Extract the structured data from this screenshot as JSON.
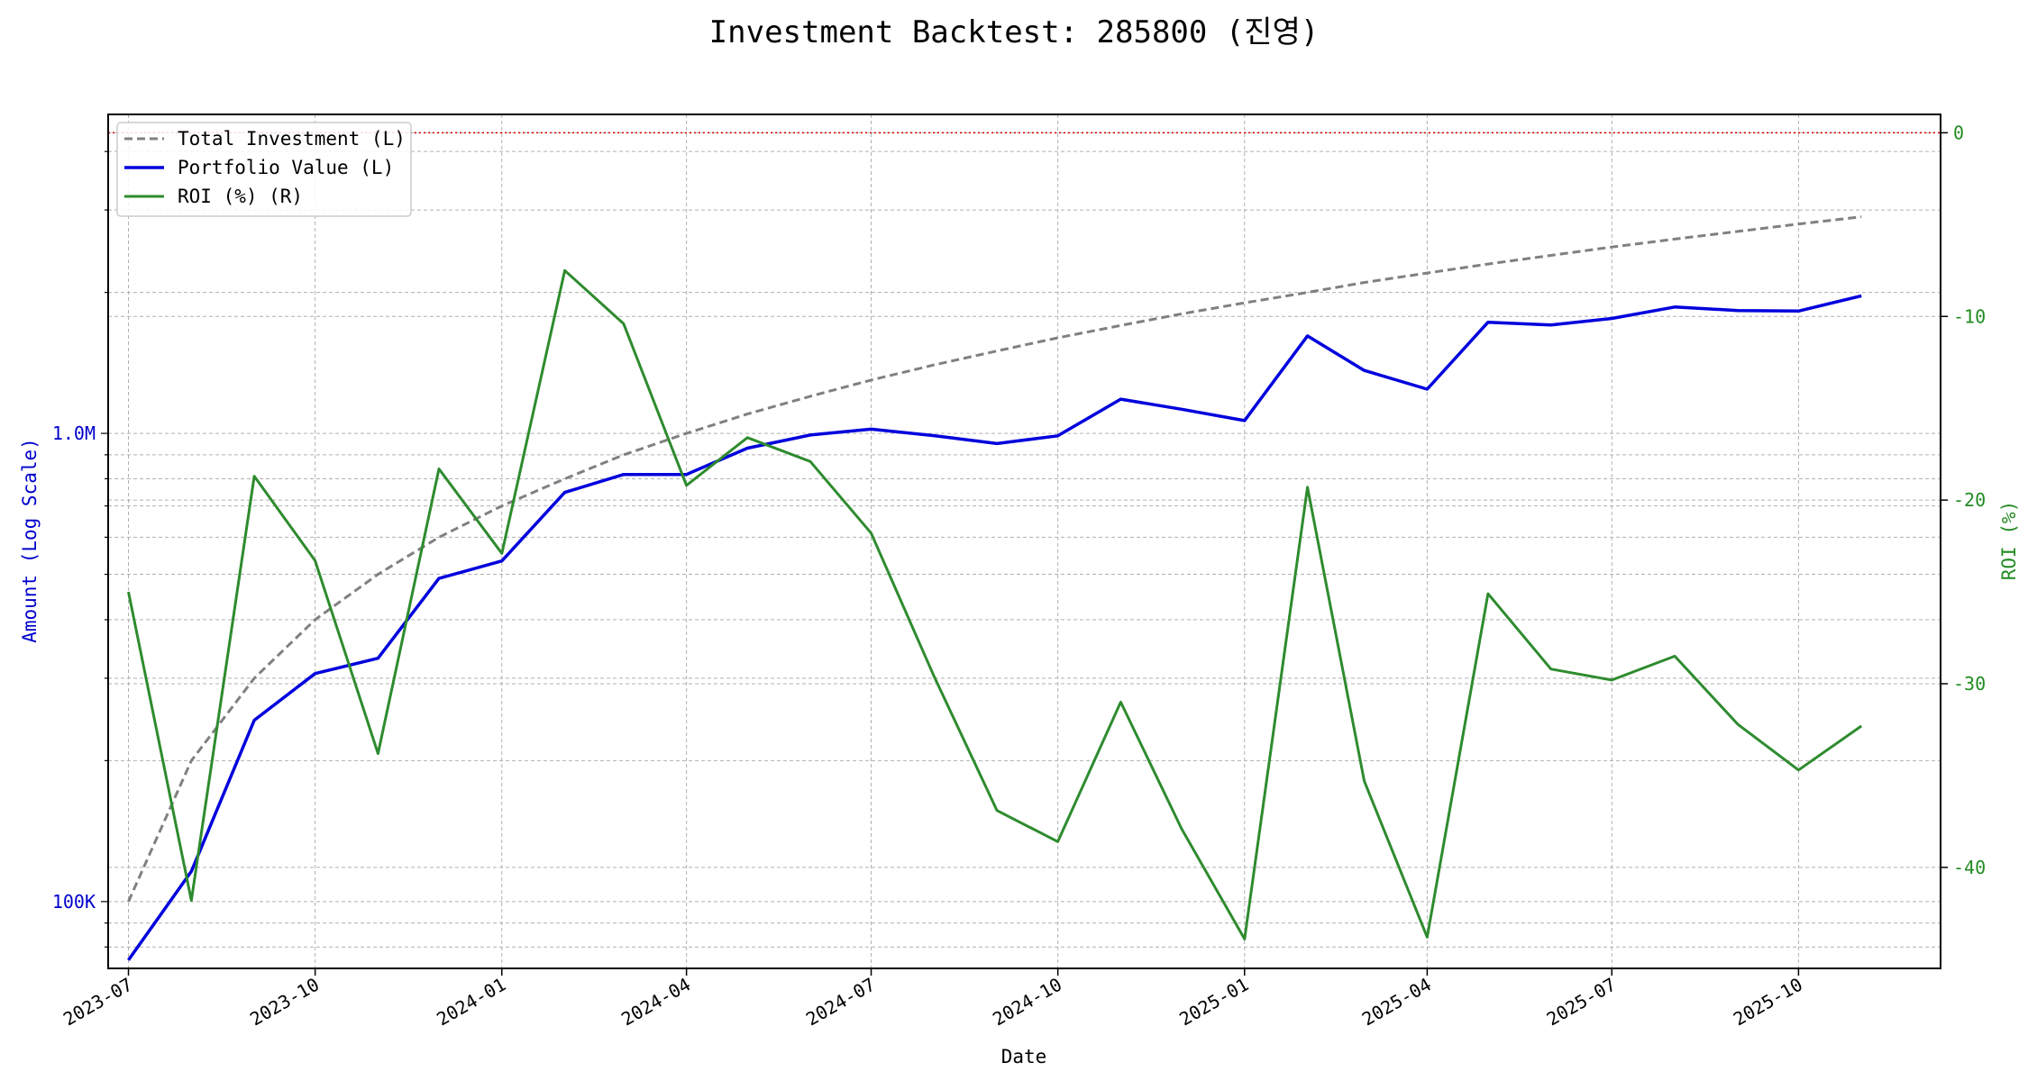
{
  "chart_data": {
    "type": "line",
    "title": "Investment Backtest: 285800 (진영)",
    "xlabel": "Date",
    "ylabel_left": "Amount (Log Scale)",
    "ylabel_right": "ROI (%)",
    "left_scale": "log",
    "left_ylim": [
      72000,
      4800000
    ],
    "right_ylim": [
      -45.5,
      1.0
    ],
    "grid": true,
    "legend_position": "upper-left",
    "x_tick_labels": [
      "2023-07",
      "2023-10",
      "2024-01",
      "2024-04",
      "2024-07",
      "2024-10",
      "2025-01",
      "2025-04",
      "2025-07",
      "2025-10"
    ],
    "left_tick_labels": [
      "100K",
      "1.0M"
    ],
    "left_tick_values": [
      100000,
      1000000
    ],
    "right_tick_labels": [
      "0",
      "-10",
      "-20",
      "-30",
      "-40"
    ],
    "right_tick_values": [
      0,
      -10,
      -20,
      -30,
      -40
    ],
    "x": [
      "2023-07-01",
      "2023-08-01",
      "2023-09-01",
      "2023-10-01",
      "2023-11-01",
      "2023-12-01",
      "2024-01-01",
      "2024-02-01",
      "2024-03-01",
      "2024-04-01",
      "2024-05-01",
      "2024-06-01",
      "2024-07-01",
      "2024-08-01",
      "2024-09-01",
      "2024-10-01",
      "2024-11-01",
      "2024-12-01",
      "2025-01-01",
      "2025-02-01",
      "2025-03-01",
      "2025-04-01",
      "2025-05-01",
      "2025-06-01",
      "2025-07-01",
      "2025-08-01",
      "2025-09-01",
      "2025-10-01",
      "2025-11-01"
    ],
    "series": [
      {
        "name": "Total Investment (L)",
        "axis": "left",
        "color": "#808080",
        "style": "dashed",
        "values": [
          100000,
          200000,
          300000,
          400000,
          500000,
          600000,
          700000,
          800000,
          900000,
          1000000,
          1100000,
          1200000,
          1300000,
          1400000,
          1500000,
          1600000,
          1700000,
          1800000,
          1900000,
          2000000,
          2100000,
          2200000,
          2300000,
          2400000,
          2500000,
          2600000,
          2700000,
          2800000,
          2900000
        ]
      },
      {
        "name": "Portfolio Value (L)",
        "axis": "left",
        "color": "#0000dd",
        "style": "solid",
        "values": [
          75000,
          116000,
          244000,
          307000,
          331000,
          490000,
          534000,
          748000,
          817000,
          817000,
          930000,
          992000,
          1021000,
          989000,
          951000,
          988000,
          1183000,
          1126000,
          1065000,
          1615000,
          1363000,
          1243000,
          1727000,
          1704000,
          1760000,
          1862000,
          1830000,
          1825000,
          1967000
        ]
      },
      {
        "name": "ROI (%) (R)",
        "axis": "right",
        "color": "#2e8b2e",
        "style": "solid",
        "values": [
          -25.0,
          -41.8,
          -18.7,
          -23.3,
          -33.8,
          -18.3,
          -22.9,
          -7.5,
          -10.4,
          -19.2,
          -16.6,
          -17.9,
          -21.8,
          -29.6,
          -36.9,
          -38.6,
          -31.0,
          -37.9,
          -43.9,
          -19.3,
          -35.3,
          -43.8,
          -25.1,
          -29.2,
          -29.8,
          -28.5,
          -32.2,
          -34.7,
          -32.3
        ]
      }
    ],
    "reference_line": {
      "axis": "right",
      "value": 0,
      "color": "#dd0000",
      "style": "dotted"
    },
    "colors": {
      "left_axis": "#0000cc",
      "right_axis": "#228b22"
    }
  }
}
